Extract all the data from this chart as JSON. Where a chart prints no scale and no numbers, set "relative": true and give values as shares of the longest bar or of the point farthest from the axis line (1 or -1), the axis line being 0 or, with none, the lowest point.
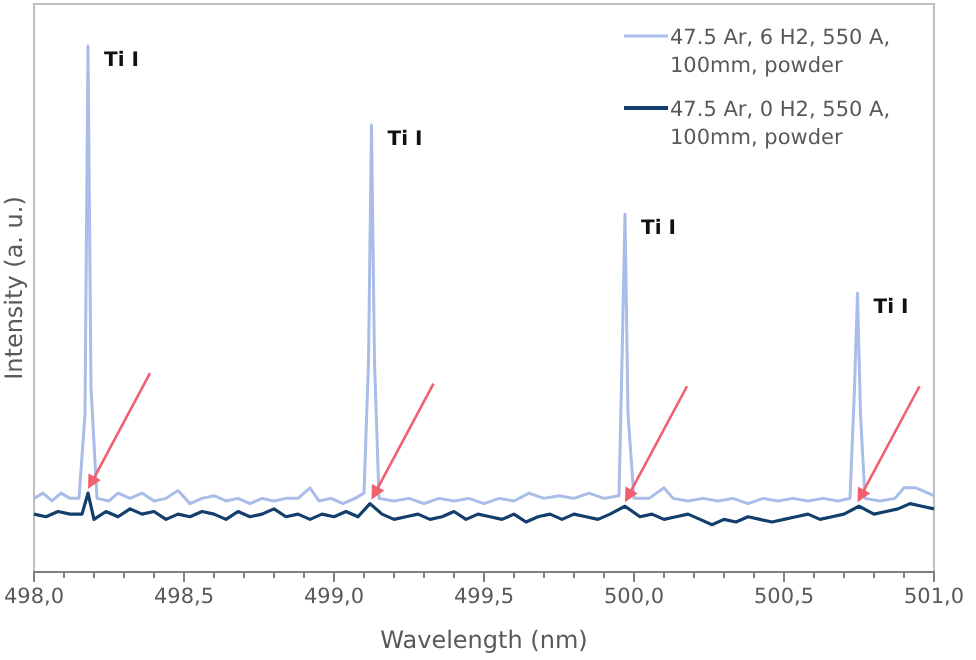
{
  "chart_data": {
    "type": "line",
    "relative": true,
    "xlabel": "Wavelength (nm)",
    "ylabel": "Intensity (a. u.)",
    "xlim": [
      498.0,
      501.0
    ],
    "xticks": [
      {
        "value": 498.0,
        "label": "498,0"
      },
      {
        "value": 498.5,
        "label": "498,5"
      },
      {
        "value": 499.0,
        "label": "499,0"
      },
      {
        "value": 499.5,
        "label": "499,5"
      },
      {
        "value": 500.0,
        "label": "500,0"
      },
      {
        "value": 500.5,
        "label": "500,5"
      },
      {
        "value": 501.0,
        "label": "501,0"
      }
    ],
    "legend": "top right",
    "grid": false,
    "series": [
      {
        "name": "47.5 Ar, 6 H2, 550 A, 100mm, powder",
        "color": "#a9bde8",
        "x": [
          498.0,
          498.03,
          498.06,
          498.09,
          498.12,
          498.15,
          498.17,
          498.18,
          498.19,
          498.21,
          498.25,
          498.28,
          498.32,
          498.36,
          498.4,
          498.44,
          498.48,
          498.52,
          498.56,
          498.6,
          498.64,
          498.68,
          498.72,
          498.76,
          498.8,
          498.84,
          498.88,
          498.92,
          498.95,
          498.99,
          499.03,
          499.07,
          499.1,
          499.115,
          499.125,
          499.135,
          499.15,
          499.2,
          499.25,
          499.3,
          499.35,
          499.4,
          499.45,
          499.5,
          499.55,
          499.6,
          499.65,
          499.7,
          499.75,
          499.8,
          499.85,
          499.9,
          499.95,
          499.96,
          499.97,
          499.98,
          500.0,
          500.05,
          500.1,
          500.13,
          500.18,
          500.23,
          500.28,
          500.33,
          500.38,
          500.43,
          500.48,
          500.53,
          500.58,
          500.63,
          500.68,
          500.72,
          500.735,
          500.745,
          500.755,
          500.77,
          500.82,
          500.87,
          500.9,
          500.94,
          500.98,
          501.0
        ],
        "values": [
          0.14,
          0.15,
          0.135,
          0.15,
          0.14,
          0.14,
          0.3,
          1.0,
          0.35,
          0.14,
          0.135,
          0.15,
          0.14,
          0.15,
          0.135,
          0.14,
          0.155,
          0.13,
          0.14,
          0.145,
          0.135,
          0.14,
          0.13,
          0.14,
          0.135,
          0.14,
          0.14,
          0.16,
          0.135,
          0.14,
          0.13,
          0.14,
          0.15,
          0.4,
          0.85,
          0.4,
          0.14,
          0.135,
          0.14,
          0.13,
          0.14,
          0.135,
          0.14,
          0.13,
          0.14,
          0.135,
          0.15,
          0.14,
          0.145,
          0.14,
          0.15,
          0.14,
          0.145,
          0.4,
          0.68,
          0.3,
          0.14,
          0.14,
          0.16,
          0.14,
          0.135,
          0.14,
          0.135,
          0.14,
          0.13,
          0.14,
          0.135,
          0.14,
          0.135,
          0.14,
          0.135,
          0.14,
          0.35,
          0.53,
          0.3,
          0.14,
          0.135,
          0.14,
          0.16,
          0.16,
          0.15,
          0.145
        ]
      },
      {
        "name": "47.5 Ar, 0 H2, 550 A, 100mm, powder",
        "color": "#123f6b",
        "x": [
          498.0,
          498.04,
          498.08,
          498.12,
          498.16,
          498.18,
          498.2,
          498.24,
          498.28,
          498.32,
          498.36,
          498.4,
          498.44,
          498.48,
          498.52,
          498.56,
          498.6,
          498.64,
          498.68,
          498.72,
          498.76,
          498.8,
          498.84,
          498.88,
          498.92,
          498.96,
          499.0,
          499.04,
          499.08,
          499.12,
          499.16,
          499.2,
          499.24,
          499.28,
          499.32,
          499.36,
          499.4,
          499.44,
          499.48,
          499.52,
          499.56,
          499.6,
          499.64,
          499.68,
          499.72,
          499.76,
          499.8,
          499.84,
          499.88,
          499.92,
          499.97,
          500.02,
          500.06,
          500.1,
          500.14,
          500.18,
          500.22,
          500.26,
          500.3,
          500.34,
          500.38,
          500.42,
          500.46,
          500.5,
          500.54,
          500.58,
          500.62,
          500.66,
          500.7,
          500.75,
          500.8,
          500.84,
          500.88,
          500.92,
          500.96,
          501.0
        ],
        "values": [
          0.11,
          0.105,
          0.115,
          0.11,
          0.11,
          0.15,
          0.1,
          0.115,
          0.105,
          0.12,
          0.11,
          0.115,
          0.1,
          0.11,
          0.105,
          0.115,
          0.11,
          0.1,
          0.115,
          0.105,
          0.11,
          0.12,
          0.105,
          0.11,
          0.1,
          0.11,
          0.105,
          0.115,
          0.105,
          0.13,
          0.11,
          0.1,
          0.105,
          0.11,
          0.1,
          0.105,
          0.115,
          0.1,
          0.11,
          0.105,
          0.1,
          0.11,
          0.095,
          0.105,
          0.11,
          0.1,
          0.11,
          0.105,
          0.1,
          0.11,
          0.125,
          0.105,
          0.11,
          0.1,
          0.105,
          0.11,
          0.1,
          0.09,
          0.1,
          0.095,
          0.105,
          0.1,
          0.095,
          0.1,
          0.105,
          0.11,
          0.1,
          0.105,
          0.11,
          0.125,
          0.11,
          0.115,
          0.12,
          0.13,
          0.125,
          0.12
        ]
      }
    ],
    "annotations": [
      {
        "text": "Ti I",
        "x": 498.18,
        "y": 1.0
      },
      {
        "text": "Ti I",
        "x": 499.125,
        "y": 0.85
      },
      {
        "text": "Ti I",
        "x": 499.97,
        "y": 0.68
      },
      {
        "text": "Ti I",
        "x": 500.745,
        "y": 0.53
      }
    ]
  }
}
